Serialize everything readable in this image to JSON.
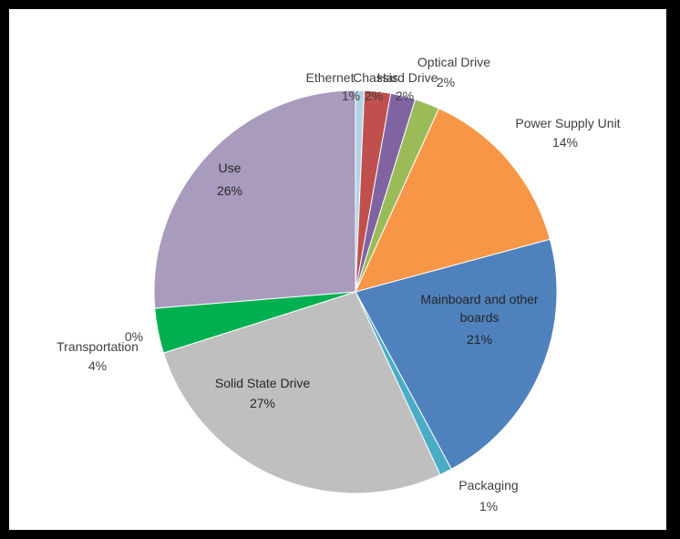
{
  "chart_data": {
    "type": "pie",
    "title": "",
    "slices": [
      {
        "label": "Ethernet",
        "value_label": "1%",
        "value": 0.7,
        "color": "#b1d3e6"
      },
      {
        "label": "Chassis",
        "value_label": "2%",
        "value": 2.1,
        "color": "#c0504d"
      },
      {
        "label": "Hard Drive",
        "value_label": "2%",
        "value": 2.0,
        "color": "#8064a2"
      },
      {
        "label": "Optical Drive",
        "value_label": "2%",
        "value": 2.0,
        "color": "#9bbb59"
      },
      {
        "label": "Power Supply Unit",
        "value_label": "14%",
        "value": 14.0,
        "color": "#f79646"
      },
      {
        "label": "Mainboard and other boards",
        "value_label": "21%",
        "value": 21.3,
        "color": "#4f81bd"
      },
      {
        "label": "Packaging",
        "value_label": "1%",
        "value": 1.0,
        "color": "#4bacc6"
      },
      {
        "label": "Solid State Drive",
        "value_label": "27%",
        "value": 27.0,
        "color": "#bfbfbf"
      },
      {
        "label": "Transportation",
        "value_label": "4%",
        "value": 3.6,
        "color": "#00b050"
      },
      {
        "label": "",
        "value_label": "0%",
        "value": 0.0,
        "color": "#ff0000"
      },
      {
        "label": "Use",
        "value_label": "26%",
        "value": 26.3,
        "color": "#a99bbd"
      }
    ],
    "legend": "none"
  }
}
